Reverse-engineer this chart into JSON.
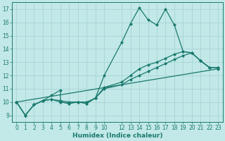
{
  "xlabel": "Humidex (Indice chaleur)",
  "bg_color": "#c2e8e8",
  "grid_color": "#a8d4d4",
  "line_color": "#1a7a6e",
  "xlim": [
    -0.5,
    23.5
  ],
  "ylim": [
    8.5,
    17.5
  ],
  "xticks": [
    0,
    1,
    2,
    3,
    4,
    5,
    6,
    7,
    8,
    9,
    10,
    12,
    13,
    14,
    15,
    16,
    17,
    18,
    19,
    20,
    21,
    22,
    23
  ],
  "yticks": [
    9,
    10,
    11,
    12,
    13,
    14,
    15,
    16,
    17
  ],
  "series1": [
    [
      0,
      10.0
    ],
    [
      1,
      9.0
    ],
    [
      2,
      9.8
    ],
    [
      3,
      10.1
    ],
    [
      4,
      10.5
    ],
    [
      5,
      10.9
    ],
    [
      5,
      10.0
    ],
    [
      6,
      9.9
    ],
    [
      7,
      10.0
    ],
    [
      8,
      9.9
    ],
    [
      9,
      10.3
    ],
    [
      10,
      12.0
    ],
    [
      12,
      14.5
    ],
    [
      13,
      15.9
    ],
    [
      14,
      17.1
    ],
    [
      15,
      16.2
    ],
    [
      16,
      15.8
    ],
    [
      17,
      17.0
    ],
    [
      18,
      15.8
    ],
    [
      19,
      13.8
    ],
    [
      20,
      13.7
    ],
    [
      21,
      13.1
    ],
    [
      22,
      12.6
    ],
    [
      23,
      12.6
    ]
  ],
  "series2": [
    [
      0,
      10.0
    ],
    [
      1,
      9.0
    ],
    [
      2,
      9.8
    ],
    [
      3,
      10.1
    ],
    [
      4,
      10.2
    ],
    [
      5,
      10.0
    ],
    [
      6,
      9.9
    ],
    [
      7,
      10.0
    ],
    [
      8,
      9.9
    ],
    [
      9,
      10.3
    ],
    [
      10,
      11.1
    ],
    [
      12,
      11.5
    ],
    [
      13,
      12.0
    ],
    [
      14,
      12.5
    ],
    [
      15,
      12.8
    ],
    [
      16,
      13.0
    ],
    [
      17,
      13.3
    ],
    [
      18,
      13.6
    ],
    [
      19,
      13.8
    ],
    [
      20,
      13.7
    ],
    [
      21,
      13.1
    ],
    [
      22,
      12.6
    ],
    [
      23,
      12.6
    ]
  ],
  "series3": [
    [
      0,
      10.0
    ],
    [
      1,
      9.0
    ],
    [
      2,
      9.8
    ],
    [
      3,
      10.1
    ],
    [
      4,
      10.2
    ],
    [
      5,
      10.1
    ],
    [
      6,
      10.0
    ],
    [
      7,
      10.0
    ],
    [
      8,
      10.0
    ],
    [
      9,
      10.3
    ],
    [
      10,
      11.0
    ],
    [
      12,
      11.3
    ],
    [
      13,
      11.7
    ],
    [
      14,
      12.0
    ],
    [
      15,
      12.3
    ],
    [
      16,
      12.6
    ],
    [
      17,
      12.9
    ],
    [
      18,
      13.2
    ],
    [
      19,
      13.5
    ],
    [
      20,
      13.7
    ],
    [
      21,
      13.1
    ],
    [
      22,
      12.6
    ],
    [
      23,
      12.6
    ]
  ],
  "series4": [
    [
      0,
      10.0
    ],
    [
      23,
      12.5
    ]
  ]
}
